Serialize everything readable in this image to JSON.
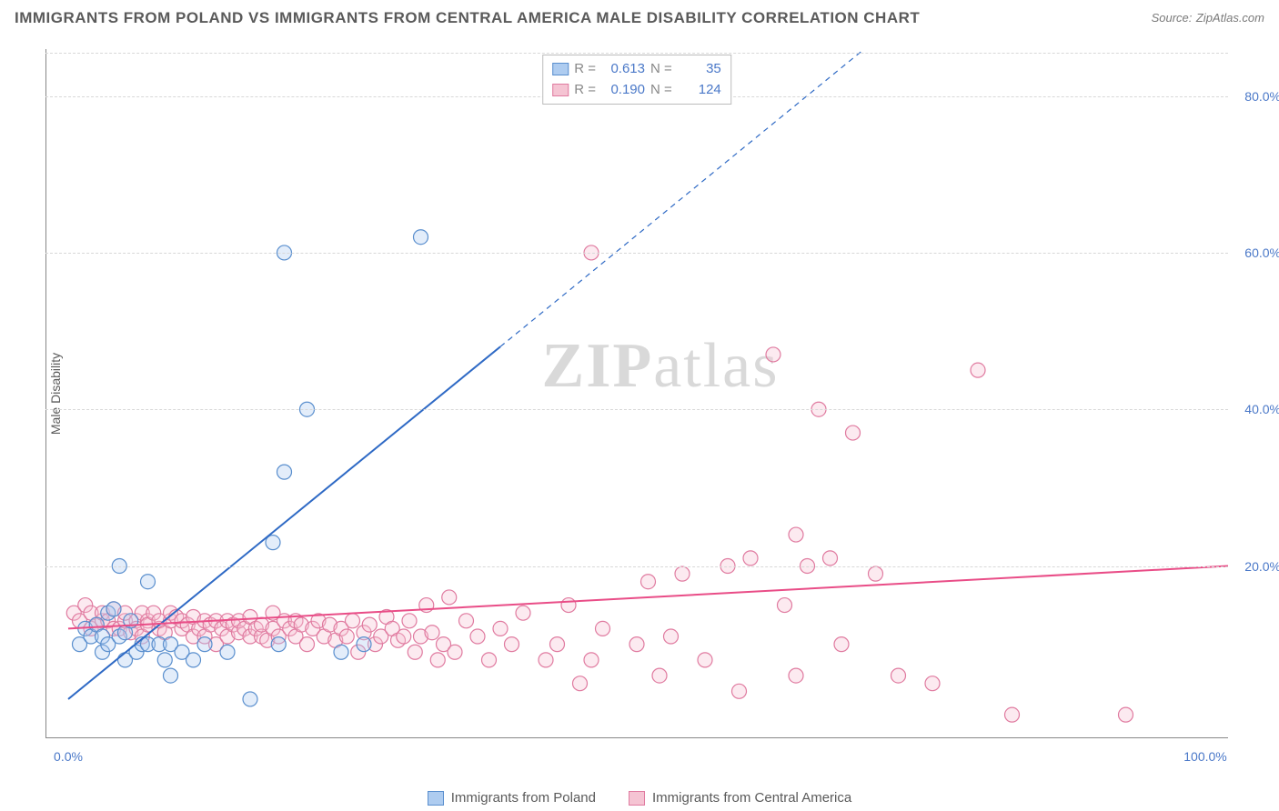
{
  "title": "IMMIGRANTS FROM POLAND VS IMMIGRANTS FROM CENTRAL AMERICA MALE DISABILITY CORRELATION CHART",
  "source_label": "Source:",
  "source_name": "ZipAtlas.com",
  "y_label": "Male Disability",
  "watermark_bold": "ZIP",
  "watermark_rest": "atlas",
  "chart": {
    "type": "scatter",
    "xlim": [
      -2,
      102
    ],
    "ylim": [
      -2,
      86
    ],
    "y_ticks": [
      20,
      40,
      60,
      80
    ],
    "y_tick_labels": [
      "20.0%",
      "40.0%",
      "60.0%",
      "80.0%"
    ],
    "x_ticks": [
      0,
      100
    ],
    "x_tick_labels": [
      "0.0%",
      "100.0%"
    ],
    "grid_color": "#d8d8d8",
    "axis_color": "#888888",
    "background_color": "#ffffff",
    "marker_radius": 8,
    "series": [
      {
        "name": "Immigrants from Poland",
        "fill": "#aeccf0",
        "stroke": "#5a8fce",
        "r_label": "R =",
        "r_value": "0.613",
        "n_label": "N =",
        "n_value": "35",
        "trend": {
          "x1": 0,
          "y1": 3,
          "x2": 38,
          "y2": 48,
          "x2_dash": 70,
          "y2_dash": 86,
          "color": "#2f6ac5",
          "width": 2
        },
        "points": [
          [
            1,
            10
          ],
          [
            1.5,
            12
          ],
          [
            2,
            11
          ],
          [
            2.5,
            12.5
          ],
          [
            3,
            9
          ],
          [
            3,
            11
          ],
          [
            3.5,
            14
          ],
          [
            4,
            14.5
          ],
          [
            3.5,
            10
          ],
          [
            4.5,
            11
          ],
          [
            4.5,
            20
          ],
          [
            5,
            11.5
          ],
          [
            5,
            8
          ],
          [
            5.5,
            13
          ],
          [
            6,
            9
          ],
          [
            6.5,
            10
          ],
          [
            7,
            10
          ],
          [
            7,
            18
          ],
          [
            8,
            10
          ],
          [
            8.5,
            8
          ],
          [
            9,
            6
          ],
          [
            9,
            10
          ],
          [
            10,
            9
          ],
          [
            11,
            8
          ],
          [
            12,
            10
          ],
          [
            14,
            9
          ],
          [
            16,
            3
          ],
          [
            18,
            23
          ],
          [
            18.5,
            10
          ],
          [
            19,
            60
          ],
          [
            19,
            32
          ],
          [
            21,
            40
          ],
          [
            24,
            9
          ],
          [
            26,
            10
          ],
          [
            31,
            62
          ]
        ]
      },
      {
        "name": "Immigrants from Central America",
        "fill": "#f5c4d3",
        "stroke": "#e07ba0",
        "r_label": "R =",
        "r_value": "0.190",
        "n_label": "N =",
        "n_value": "124",
        "trend": {
          "x1": 0,
          "y1": 12,
          "x2": 102,
          "y2": 20,
          "color": "#e94d87",
          "width": 2
        },
        "points": [
          [
            0.5,
            14
          ],
          [
            1,
            13
          ],
          [
            1.5,
            15
          ],
          [
            2,
            12
          ],
          [
            2,
            14
          ],
          [
            2.5,
            12.5
          ],
          [
            3,
            13
          ],
          [
            3,
            14
          ],
          [
            3.5,
            13
          ],
          [
            4,
            12
          ],
          [
            4,
            14.5
          ],
          [
            4.5,
            12
          ],
          [
            5,
            13
          ],
          [
            5,
            14
          ],
          [
            5.5,
            11.5
          ],
          [
            6,
            13
          ],
          [
            6,
            12
          ],
          [
            6.5,
            14
          ],
          [
            6.5,
            11
          ],
          [
            7,
            13
          ],
          [
            7,
            12.5
          ],
          [
            7.5,
            14
          ],
          [
            8,
            12
          ],
          [
            8,
            13
          ],
          [
            8.5,
            11.5
          ],
          [
            9,
            13
          ],
          [
            9,
            14
          ],
          [
            9.5,
            13.5
          ],
          [
            10,
            12
          ],
          [
            10,
            13
          ],
          [
            10.5,
            12.5
          ],
          [
            11,
            11
          ],
          [
            11,
            13.5
          ],
          [
            11.5,
            12
          ],
          [
            12,
            13
          ],
          [
            12,
            11
          ],
          [
            12.5,
            12.5
          ],
          [
            13,
            10
          ],
          [
            13,
            13
          ],
          [
            13.5,
            12
          ],
          [
            14,
            11
          ],
          [
            14,
            13
          ],
          [
            14.5,
            12.5
          ],
          [
            15,
            11.5
          ],
          [
            15,
            13
          ],
          [
            15.5,
            12
          ],
          [
            16,
            11
          ],
          [
            16,
            13.5
          ],
          [
            16.5,
            12
          ],
          [
            17,
            11
          ],
          [
            17,
            12.5
          ],
          [
            17.5,
            10.5
          ],
          [
            18,
            12
          ],
          [
            18,
            14
          ],
          [
            18.5,
            11
          ],
          [
            19,
            13
          ],
          [
            19.5,
            12
          ],
          [
            20,
            11
          ],
          [
            20,
            13
          ],
          [
            20.5,
            12.5
          ],
          [
            21,
            10
          ],
          [
            21.5,
            12
          ],
          [
            22,
            13
          ],
          [
            22.5,
            11
          ],
          [
            23,
            12.5
          ],
          [
            23.5,
            10.5
          ],
          [
            24,
            12
          ],
          [
            24.5,
            11
          ],
          [
            25,
            13
          ],
          [
            25.5,
            9
          ],
          [
            26,
            11.5
          ],
          [
            26.5,
            12.5
          ],
          [
            27,
            10
          ],
          [
            27.5,
            11
          ],
          [
            28,
            13.5
          ],
          [
            28.5,
            12
          ],
          [
            29,
            10.5
          ],
          [
            29.5,
            11
          ],
          [
            30,
            13
          ],
          [
            30.5,
            9
          ],
          [
            31,
            11
          ],
          [
            31.5,
            15
          ],
          [
            32,
            11.5
          ],
          [
            32.5,
            8
          ],
          [
            33,
            10
          ],
          [
            33.5,
            16
          ],
          [
            34,
            9
          ],
          [
            35,
            13
          ],
          [
            36,
            11
          ],
          [
            37,
            8
          ],
          [
            38,
            12
          ],
          [
            39,
            10
          ],
          [
            40,
            14
          ],
          [
            42,
            8
          ],
          [
            43,
            10
          ],
          [
            44,
            15
          ],
          [
            45,
            5
          ],
          [
            46,
            8
          ],
          [
            46,
            60
          ],
          [
            47,
            12
          ],
          [
            50,
            10
          ],
          [
            51,
            18
          ],
          [
            52,
            6
          ],
          [
            53,
            11
          ],
          [
            54,
            19
          ],
          [
            56,
            8
          ],
          [
            58,
            20
          ],
          [
            59,
            4
          ],
          [
            60,
            21
          ],
          [
            62,
            47
          ],
          [
            63,
            15
          ],
          [
            64,
            6
          ],
          [
            64,
            24
          ],
          [
            65,
            20
          ],
          [
            66,
            40
          ],
          [
            67,
            21
          ],
          [
            68,
            10
          ],
          [
            69,
            37
          ],
          [
            71,
            19
          ],
          [
            73,
            6
          ],
          [
            76,
            5
          ],
          [
            80,
            45
          ],
          [
            83,
            1
          ],
          [
            93,
            1
          ]
        ]
      }
    ]
  }
}
